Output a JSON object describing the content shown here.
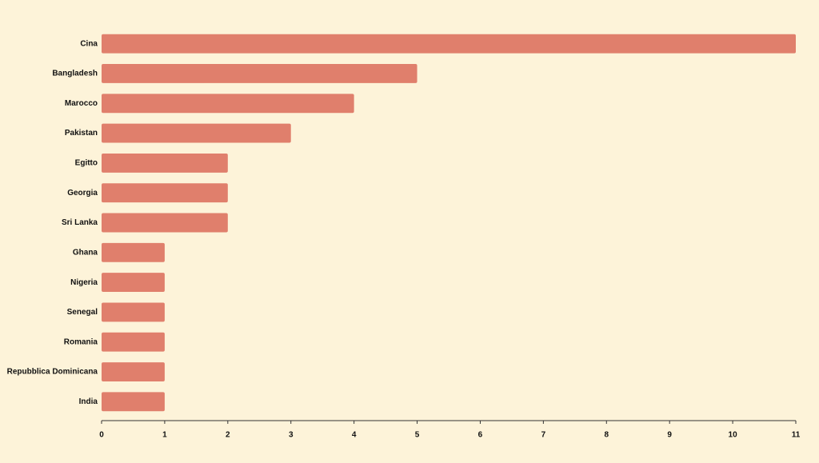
{
  "chart_data": {
    "type": "bar",
    "categories": [
      "Cina",
      "Bangladesh",
      "Marocco",
      "Pakistan",
      "Egitto",
      "Georgia",
      "Sri Lanka",
      "Ghana",
      "Nigeria",
      "Senegal",
      "Romania",
      "Repubblica Dominicana",
      "India"
    ],
    "values": [
      11,
      5,
      4,
      3,
      2,
      2,
      2,
      1,
      1,
      1,
      1,
      1,
      1
    ],
    "color": "#e07f6c",
    "xlim": [
      0,
      11
    ],
    "xticks": [
      0,
      1,
      2,
      3,
      4,
      5,
      6,
      7,
      8,
      9,
      10,
      11
    ]
  }
}
